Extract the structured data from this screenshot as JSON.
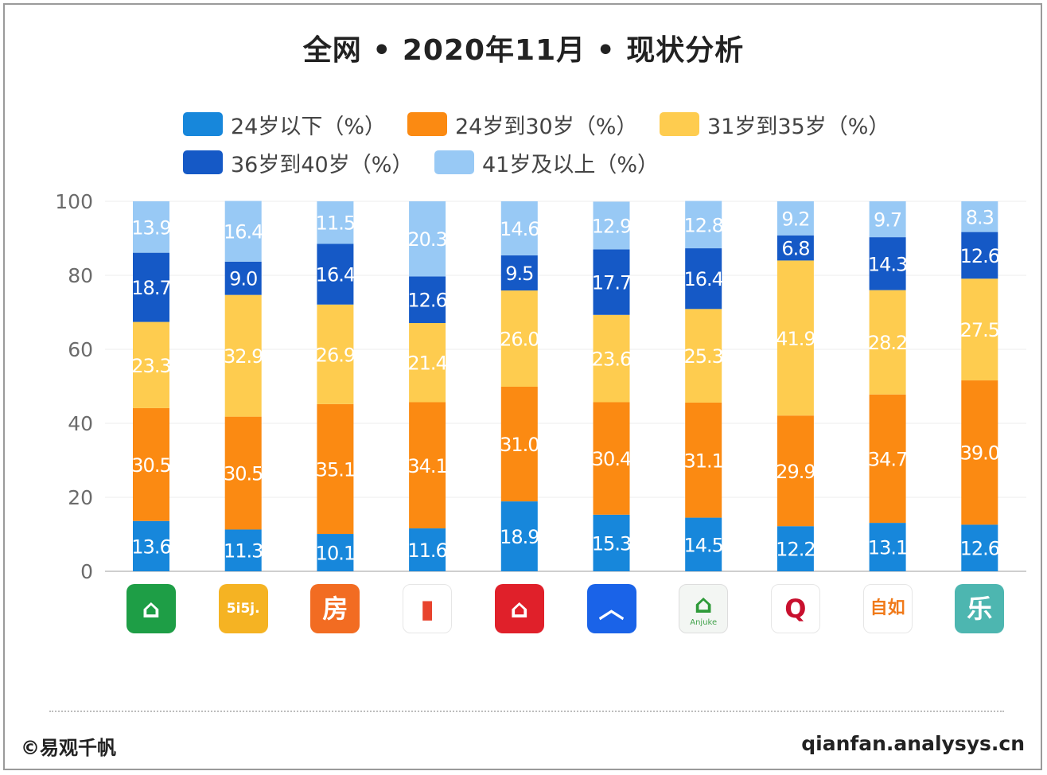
{
  "chart_data": {
    "type": "bar",
    "stacked": true,
    "title": "全网 • 2020年11月 • 现状分析",
    "ylim": [
      0,
      100
    ],
    "yticks": [
      "0",
      "20",
      "40",
      "60",
      "80",
      "100"
    ],
    "grid": true,
    "legend_position": "top",
    "categories": [
      "链家",
      "我爱我家",
      "房天下",
      "幸福里",
      "房多多",
      "贝壳找房",
      "安居客",
      "Q房网",
      "自如",
      "乐居"
    ],
    "series": [
      {
        "name": "24岁以下（%）",
        "color": "#1787DB",
        "values": [
          13.6,
          11.3,
          10.1,
          11.6,
          18.9,
          15.3,
          14.5,
          12.2,
          13.1,
          12.6
        ]
      },
      {
        "name": "24岁到30岁（%）",
        "color": "#FB8A12",
        "values": [
          30.5,
          30.5,
          35.1,
          34.1,
          31.0,
          30.4,
          31.1,
          29.9,
          34.7,
          39.0
        ]
      },
      {
        "name": "31岁到35岁（%）",
        "color": "#FECC4F",
        "values": [
          23.3,
          32.9,
          26.9,
          21.4,
          26.0,
          23.6,
          25.3,
          41.9,
          28.2,
          27.5
        ]
      },
      {
        "name": "36岁到40岁（%）",
        "color": "#1559C6",
        "values": [
          18.7,
          9.0,
          16.4,
          12.6,
          9.5,
          17.7,
          16.4,
          6.8,
          14.3,
          12.6
        ]
      },
      {
        "name": "41岁及以上（%）",
        "color": "#98C9F5",
        "values": [
          13.9,
          16.4,
          11.5,
          20.3,
          14.6,
          12.9,
          12.8,
          9.2,
          9.7,
          8.3
        ]
      }
    ]
  },
  "app_icons": [
    {
      "name": "lianjia-icon",
      "glyph": "⌂",
      "sub": "",
      "bg": "#1E9E46",
      "fg": "#ffffff",
      "border": ""
    },
    {
      "name": "5i5j-icon",
      "glyph": "5i5j.",
      "sub": "",
      "bg": "#F5B323",
      "fg": "#ffffff",
      "border": ""
    },
    {
      "name": "fang-icon",
      "glyph": "房",
      "sub": "",
      "bg": "#F26C22",
      "fg": "#ffffff",
      "border": ""
    },
    {
      "name": "xingfuli-icon",
      "glyph": "▮",
      "sub": "",
      "bg": "#ffffff",
      "fg": "#E8432D",
      "border": "#e6e6e6"
    },
    {
      "name": "fangduoduo-icon",
      "glyph": "⌂",
      "sub": "",
      "bg": "#E0202A",
      "fg": "#ffffff",
      "border": ""
    },
    {
      "name": "beike-icon",
      "glyph": "︿",
      "sub": "",
      "bg": "#1A63E8",
      "fg": "#ffffff",
      "border": ""
    },
    {
      "name": "anjuke-icon",
      "glyph": "⌂",
      "sub": "Anjuke",
      "bg": "#F3F6F3",
      "fg": "#2E9A39",
      "border": "#dddddd"
    },
    {
      "name": "qfang-icon",
      "glyph": "Q",
      "sub": "",
      "bg": "#ffffff",
      "fg": "#C8102E",
      "border": "#e6e6e6"
    },
    {
      "name": "ziroom-icon",
      "glyph": "自如",
      "sub": "",
      "bg": "#ffffff",
      "fg": "#F07A1A",
      "border": "#e6e6e6"
    },
    {
      "name": "leju-icon",
      "glyph": "乐",
      "sub": "",
      "bg": "#4DB6B0",
      "fg": "#ffffff",
      "border": ""
    }
  ],
  "footer": {
    "brand": "©易观千帆",
    "url": "qianfan.analysys.cn"
  }
}
